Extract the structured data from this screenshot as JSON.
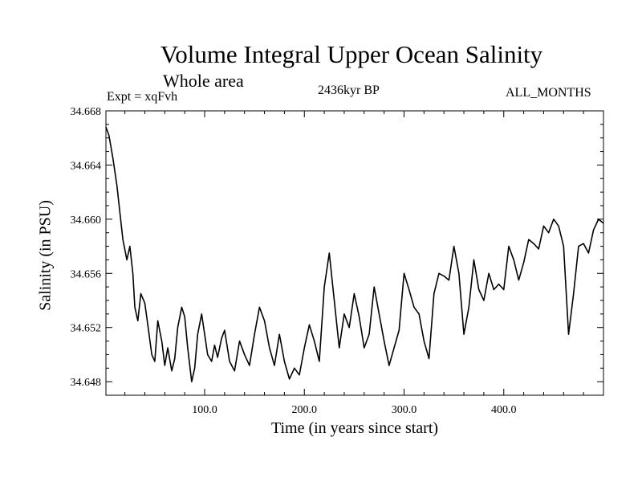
{
  "chart_data": {
    "type": "line",
    "title": "Volume Integral Upper Ocean Salinity",
    "subtitle": "Whole area",
    "left_annotation": "Expt = xqFvh",
    "center_annotation": "2436kyr BP",
    "right_annotation": "ALL_MONTHS",
    "xlabel": "Time (in years since start)",
    "ylabel": "Salinity (in PSU)",
    "xlim": [
      1,
      500
    ],
    "ylim": [
      34.647,
      34.668
    ],
    "x_ticks": [
      100,
      200,
      300,
      400
    ],
    "x_tick_labels": [
      "100.0",
      "200.0",
      "300.0",
      "400.0"
    ],
    "y_ticks": [
      34.648,
      34.652,
      34.656,
      34.66,
      34.664,
      34.668
    ],
    "y_tick_labels": [
      "34.648",
      "34.652",
      "34.656",
      "34.660",
      "34.664",
      "34.668"
    ],
    "series": [
      {
        "name": "Salinity",
        "color": "#000000",
        "x": [
          1,
          4,
          8,
          12,
          15,
          18,
          22,
          25,
          28,
          30,
          33,
          36,
          40,
          43,
          47,
          50,
          53,
          57,
          60,
          63,
          67,
          70,
          73,
          77,
          80,
          83,
          87,
          90,
          93,
          97,
          100,
          103,
          107,
          110,
          113,
          117,
          120,
          125,
          130,
          135,
          140,
          145,
          150,
          155,
          160,
          165,
          170,
          175,
          180,
          185,
          190,
          195,
          200,
          205,
          210,
          215,
          220,
          225,
          230,
          235,
          240,
          245,
          250,
          255,
          260,
          265,
          270,
          275,
          280,
          285,
          290,
          295,
          300,
          305,
          310,
          315,
          320,
          325,
          330,
          335,
          340,
          345,
          350,
          355,
          360,
          365,
          370,
          375,
          380,
          385,
          390,
          395,
          400,
          405,
          410,
          415,
          420,
          425,
          430,
          435,
          440,
          445,
          450,
          455,
          460,
          465,
          470,
          475,
          480,
          485,
          490,
          495,
          500
        ],
        "y": [
          34.6668,
          34.6662,
          34.6645,
          34.6625,
          34.6605,
          34.6585,
          34.657,
          34.658,
          34.656,
          34.6535,
          34.6525,
          34.6545,
          34.6538,
          34.6522,
          34.65,
          34.6495,
          34.6525,
          34.651,
          34.6492,
          34.6505,
          34.6488,
          34.6497,
          34.652,
          34.6535,
          34.6528,
          34.6505,
          34.648,
          34.649,
          34.6515,
          34.653,
          34.6515,
          34.65,
          34.6495,
          34.6507,
          34.6498,
          34.6512,
          34.6518,
          34.6495,
          34.6488,
          34.651,
          34.65,
          34.6492,
          34.6515,
          34.6535,
          34.6525,
          34.6505,
          34.6492,
          34.6515,
          34.6495,
          34.6482,
          34.649,
          34.6485,
          34.6505,
          34.6522,
          34.651,
          34.6495,
          34.655,
          34.6575,
          34.654,
          34.6505,
          34.653,
          34.652,
          34.6545,
          34.6528,
          34.6505,
          34.6515,
          34.655,
          34.653,
          34.651,
          34.6492,
          34.6505,
          34.6518,
          34.656,
          34.6548,
          34.6535,
          34.653,
          34.651,
          34.6497,
          34.6545,
          34.656,
          34.6558,
          34.6555,
          34.658,
          34.656,
          34.6515,
          34.6535,
          34.657,
          34.6548,
          34.654,
          34.656,
          34.6548,
          34.6552,
          34.6548,
          34.658,
          34.657,
          34.6555,
          34.6568,
          34.6585,
          34.6582,
          34.6578,
          34.6595,
          34.659,
          34.66,
          34.6595,
          34.658,
          34.6515,
          34.6545,
          34.658,
          34.6582,
          34.6575,
          34.6592,
          34.66,
          34.6597
        ]
      }
    ]
  }
}
